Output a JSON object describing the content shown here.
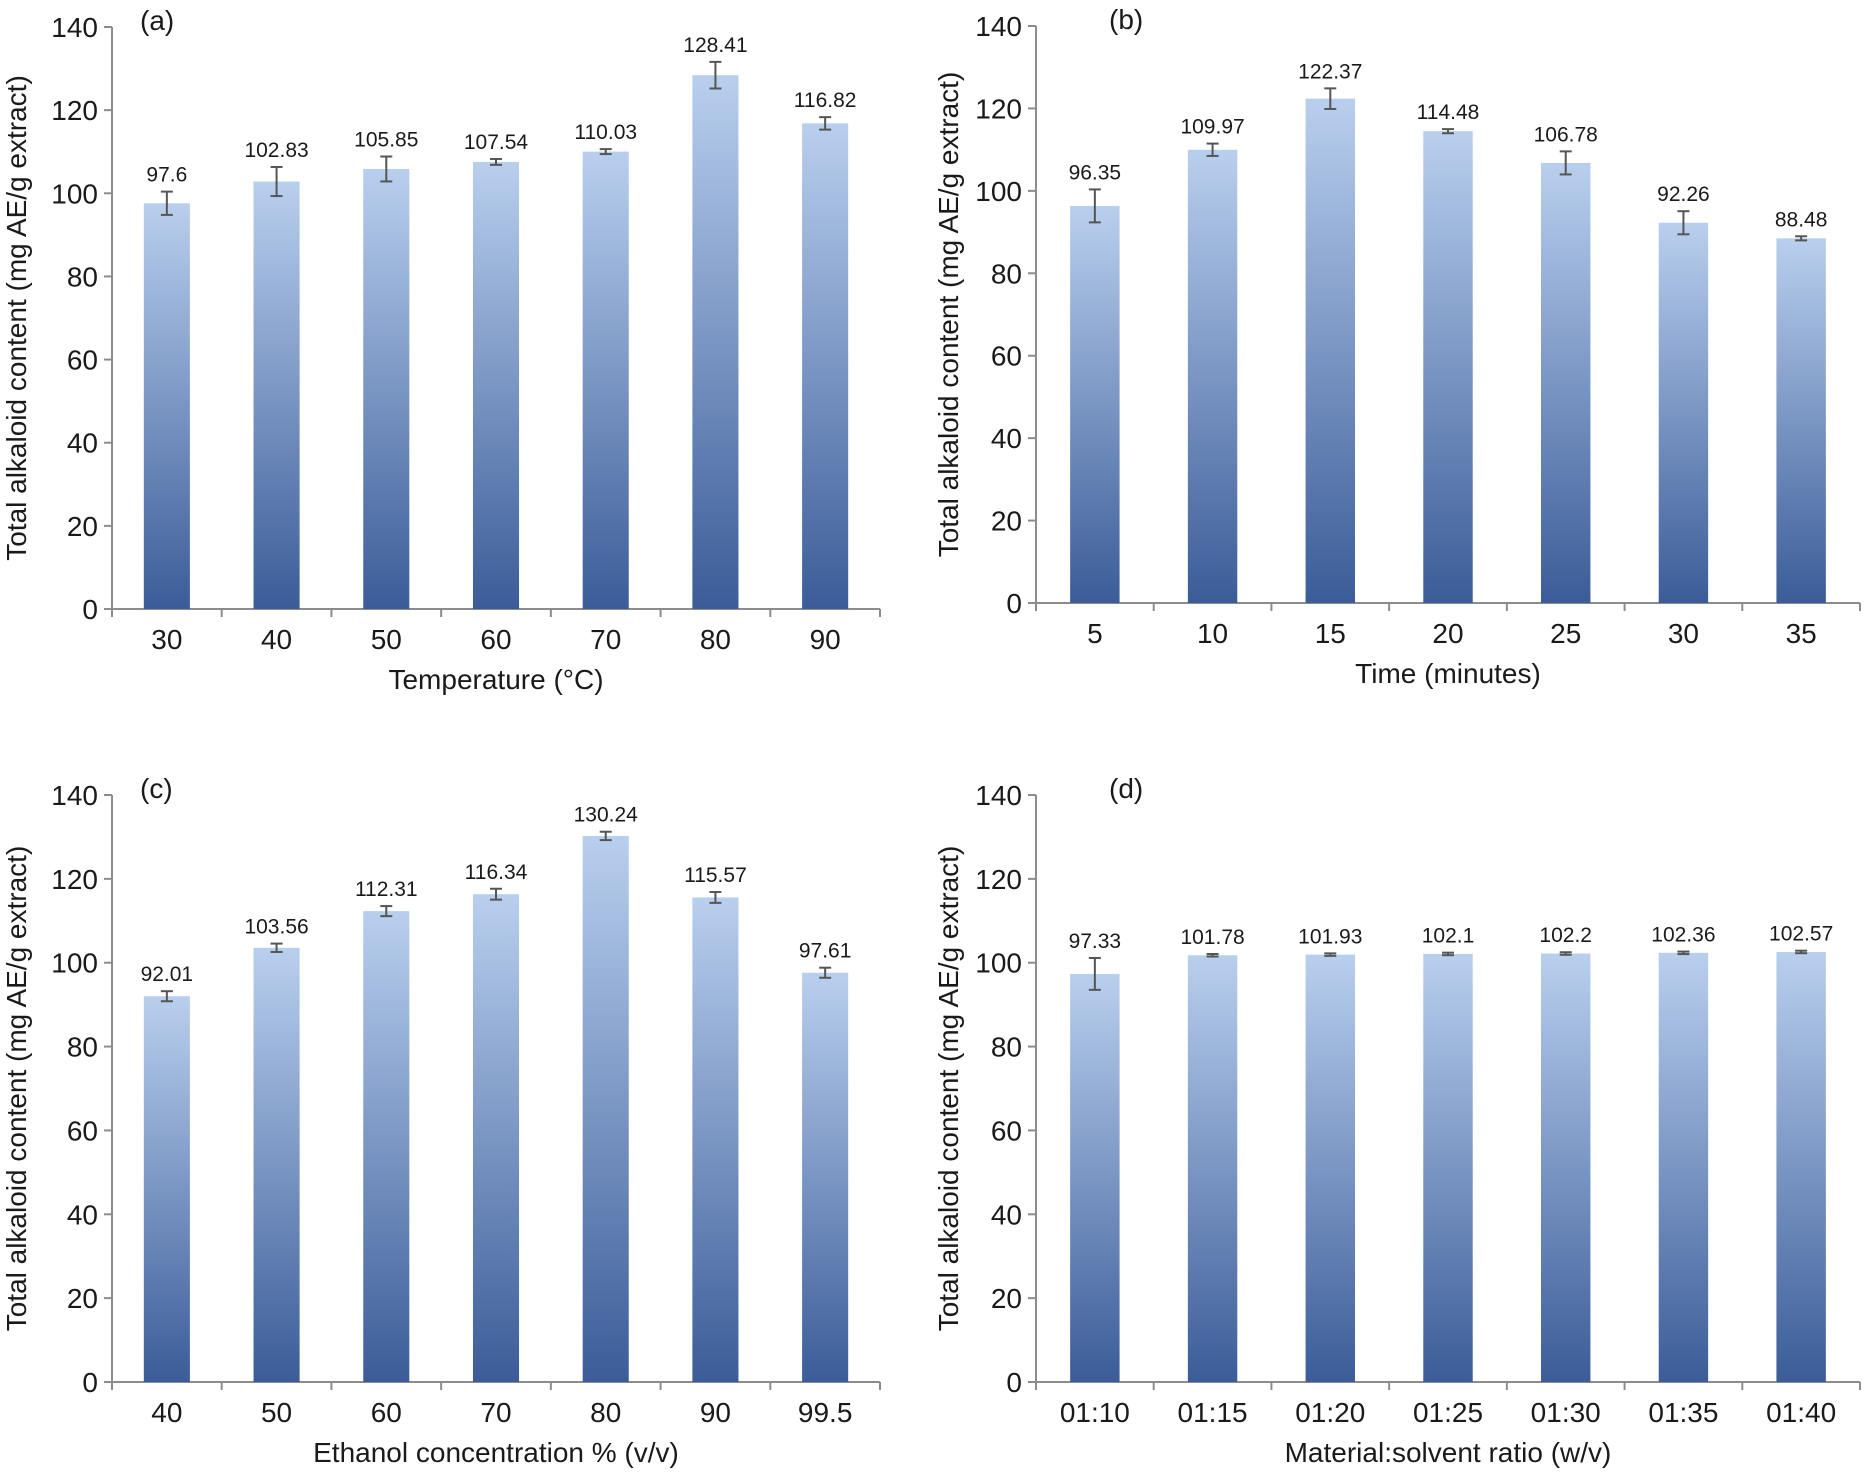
{
  "chart_data": [
    {
      "type": "bar",
      "panel_label": "(a)",
      "xlabel": "Temperature (°C)",
      "ylabel": "Total alkaloid content (mg AE/g extract)",
      "ylim": [
        0,
        140
      ],
      "yticks": [
        "0",
        "20",
        "40",
        "60",
        "80",
        "100",
        "120",
        "140"
      ],
      "categories": [
        "30",
        "40",
        "50",
        "60",
        "70",
        "80",
        "90"
      ],
      "values": [
        97.6,
        102.83,
        105.85,
        107.54,
        110.03,
        128.41,
        116.82
      ],
      "value_labels": [
        "97.6",
        "102.83",
        "105.85",
        "107.54",
        "110.03",
        "128.41",
        "116.82"
      ],
      "errors": [
        2.8,
        3.5,
        3.0,
        0.7,
        0.6,
        3.2,
        1.5
      ],
      "grid": false,
      "legend": "none"
    },
    {
      "type": "bar",
      "panel_label": "(b)",
      "xlabel": "Time (minutes)",
      "ylabel": "Total alkaloid content (mg AE/g extract)",
      "ylim": [
        0,
        140
      ],
      "yticks": [
        "0",
        "20",
        "40",
        "60",
        "80",
        "100",
        "120",
        "140"
      ],
      "categories": [
        "5",
        "10",
        "15",
        "20",
        "25",
        "30",
        "35"
      ],
      "values": [
        96.35,
        109.97,
        122.37,
        114.48,
        106.78,
        92.26,
        88.48
      ],
      "value_labels": [
        "96.35",
        "109.97",
        "122.37",
        "114.48",
        "106.78",
        "92.26",
        "88.48"
      ],
      "errors": [
        4.0,
        1.5,
        2.5,
        0.5,
        2.8,
        2.8,
        0.5
      ],
      "grid": false,
      "legend": "none"
    },
    {
      "type": "bar",
      "panel_label": "(c)",
      "xlabel": "Ethanol concentration % (v/v)",
      "ylabel": "Total alkaloid content (mg AE/g extract)",
      "ylim": [
        0,
        140
      ],
      "yticks": [
        "0",
        "20",
        "40",
        "60",
        "80",
        "100",
        "120",
        "140"
      ],
      "categories": [
        "40",
        "50",
        "60",
        "70",
        "80",
        "90",
        "99.5"
      ],
      "values": [
        92.01,
        103.56,
        112.31,
        116.34,
        130.24,
        115.57,
        97.61
      ],
      "value_labels": [
        "92.01",
        "103.56",
        "112.31",
        "116.34",
        "130.24",
        "115.57",
        "97.61"
      ],
      "errors": [
        1.2,
        1.0,
        1.2,
        1.3,
        1.0,
        1.3,
        1.2
      ],
      "grid": false,
      "legend": "none"
    },
    {
      "type": "bar",
      "panel_label": "(d)",
      "xlabel": "Material:solvent ratio (w/v)",
      "ylabel": "Total alkaloid content (mg AE/g extract)",
      "ylim": [
        0,
        140
      ],
      "yticks": [
        "0",
        "20",
        "40",
        "60",
        "80",
        "100",
        "120",
        "140"
      ],
      "categories": [
        "01:10",
        "01:15",
        "01:20",
        "01:25",
        "01:30",
        "01:35",
        "01:40"
      ],
      "values": [
        97.33,
        101.78,
        101.93,
        102.1,
        102.2,
        102.36,
        102.57
      ],
      "value_labels": [
        "97.33",
        "101.78",
        "101.93",
        "102.1",
        "102.2",
        "102.36",
        "102.57"
      ],
      "errors": [
        3.8,
        0.3,
        0.3,
        0.3,
        0.3,
        0.3,
        0.3
      ],
      "grid": false,
      "legend": "none"
    }
  ],
  "colors": {
    "bar_top": "#b9cfee",
    "bar_bottom": "#3b5c98",
    "axis": "#8c8c8c",
    "error_bar": "#555555",
    "text": "#1a1a1a"
  }
}
